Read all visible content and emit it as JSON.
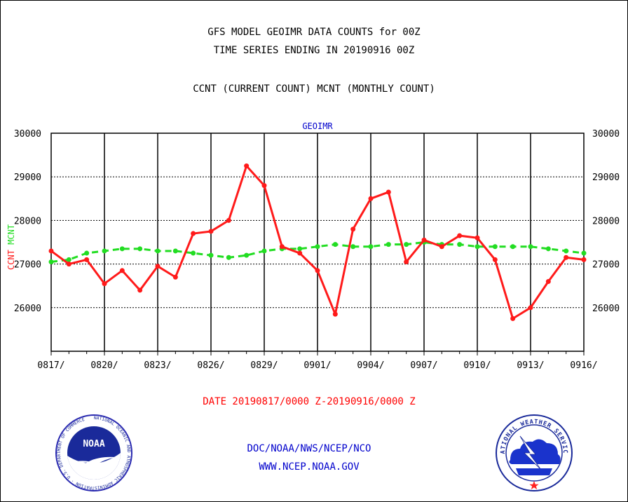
{
  "header": {
    "line1": "GFS MODEL GEOIMR DATA COUNTS for 00Z",
    "line2": "TIME SERIES ENDING IN 20190916 00Z",
    "line3": "CCNT (CURRENT COUNT) MCNT (MONTHLY COUNT)"
  },
  "footer": {
    "date_range": "DATE 20190817/0000 Z-20190916/0000 Z",
    "org": "DOC/NOAA/NWS/NCEP/NCO",
    "url": "WWW.NCEP.NOAA.GOV"
  },
  "logos": {
    "noaa": {
      "label": "NOAA",
      "ring_text": "NATIONAL OCEANIC AND ATMOSPHERIC ADMINISTRATION · U.S. DEPARTMENT OF COMMERCE"
    },
    "nws": {
      "ring_text": "NATIONAL WEATHER SERVICE"
    }
  },
  "colors": {
    "ccnt": "#ff1a1a",
    "mcnt": "#22dd22",
    "title_blue": "#0000cc",
    "footer_red": "#ff0000",
    "footer_blue": "#0000cc"
  },
  "chart_data": {
    "type": "line",
    "title": "GEOIMR",
    "ylabel_left": [
      "CCNT",
      "MCNT"
    ],
    "ylim": [
      25000,
      30000
    ],
    "yticks": [
      26000,
      27000,
      28000,
      29000,
      30000
    ],
    "grid": true,
    "x": [
      "0817",
      "0818",
      "0819",
      "0820",
      "0821",
      "0822",
      "0823",
      "0824",
      "0825",
      "0826",
      "0827",
      "0828",
      "0829",
      "0830",
      "0831",
      "0901",
      "0902",
      "0903",
      "0904",
      "0905",
      "0906",
      "0907",
      "0908",
      "0909",
      "0910",
      "0911",
      "0912",
      "0913",
      "0914",
      "0915",
      "0916"
    ],
    "xtick_labels": [
      "0817/",
      "0820/",
      "0823/",
      "0826/",
      "0829/",
      "0901/",
      "0904/",
      "0907/",
      "0910/",
      "0913/",
      "0916/"
    ],
    "series": [
      {
        "name": "CCNT",
        "color": "#ff1a1a",
        "style": "solid",
        "values": [
          27300,
          27000,
          27100,
          26550,
          26850,
          26400,
          26950,
          26700,
          27700,
          27750,
          28000,
          29250,
          28800,
          27400,
          27250,
          26850,
          25850,
          27800,
          28500,
          28650,
          27050,
          27550,
          27400,
          27650,
          27600,
          27100,
          25750,
          26000,
          26600,
          27150,
          27100
        ]
      },
      {
        "name": "MCNT",
        "color": "#22dd22",
        "style": "dashed",
        "values": [
          27050,
          27100,
          27250,
          27300,
          27350,
          27350,
          27300,
          27300,
          27250,
          27200,
          27150,
          27200,
          27300,
          27350,
          27350,
          27400,
          27450,
          27400,
          27400,
          27450,
          27450,
          27500,
          27450,
          27450,
          27400,
          27400,
          27400,
          27400,
          27350,
          27300,
          27250
        ]
      }
    ]
  }
}
